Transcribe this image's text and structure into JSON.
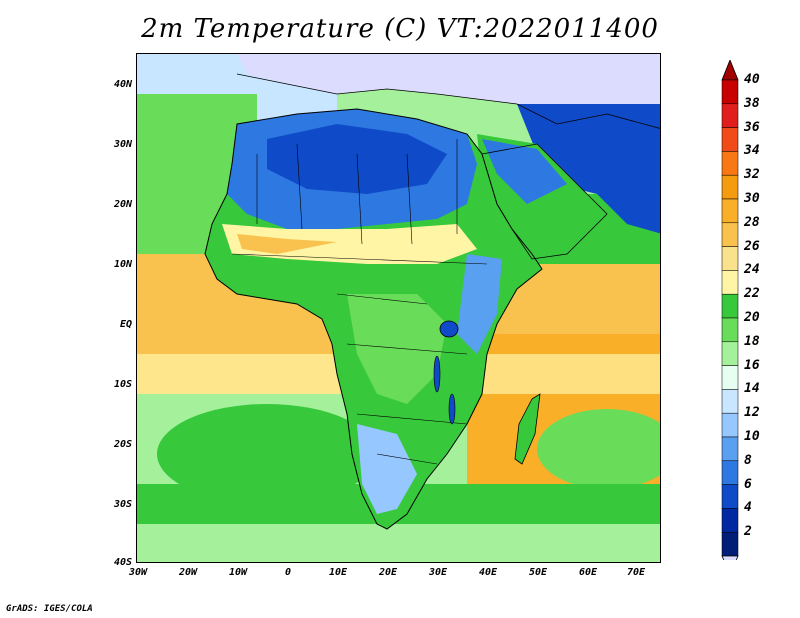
{
  "title": "2m Temperature (C) VT:2022011400",
  "credit": "GrADS: IGES/COLA",
  "latitude_labels": [
    "40N",
    "30N",
    "20N",
    "10N",
    "EQ",
    "10S",
    "20S",
    "30S",
    "40S"
  ],
  "longitude_labels": [
    "30W",
    "20W",
    "10W",
    "0",
    "10E",
    "20E",
    "30E",
    "40E",
    "50E",
    "60E",
    "70E"
  ],
  "colorbar": {
    "labels": [
      "40",
      "38",
      "36",
      "34",
      "32",
      "30",
      "28",
      "26",
      "24",
      "22",
      "20",
      "18",
      "16",
      "14",
      "12",
      "10",
      "8",
      "6",
      "4",
      "2"
    ],
    "colors": [
      "#c80000",
      "#e11e1e",
      "#f04b19",
      "#fa7814",
      "#f59b0f",
      "#faaf28",
      "#f9c24e",
      "#fae18c",
      "#fff5a5",
      "#37c83c",
      "#69dc5a",
      "#a5f09b",
      "#e6fff0",
      "#c8e6ff",
      "#96c8ff",
      "#5aa0f0",
      "#2d78e1",
      "#0f4bc8",
      "#0028a0",
      "#001e78"
    ],
    "top_arrow_color": "#a00000",
    "bottom_arrow_color": "#dcdcff"
  },
  "map_colors": {
    "ocean_tropical": "#f9c24e",
    "ocean_warm": "#faaf28",
    "ocean_mid": "#fff5a5",
    "ocean_cool": "#69dc5a",
    "ocean_cooler": "#a5f09b",
    "land_green": "#37c83c",
    "land_lightgreen": "#69dc5a",
    "desert_blue": "#2d78e1",
    "desert_darkblue": "#0f4bc8",
    "europe_lavender": "#dcdcff",
    "coast_line": "#000000"
  }
}
